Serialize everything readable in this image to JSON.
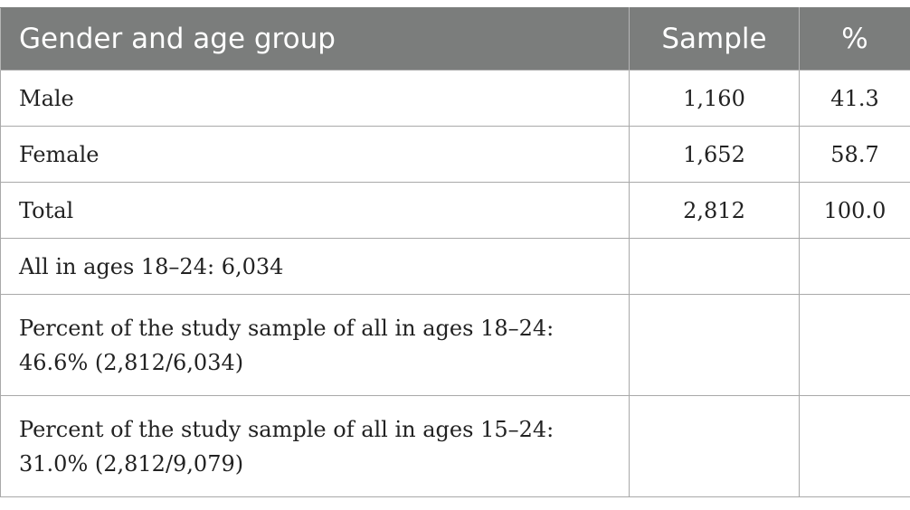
{
  "table": {
    "headers": [
      "Gender and age group",
      "Sample",
      "%"
    ],
    "rows": [
      {
        "label": "Male",
        "sample": "1,160",
        "percent": "41.3"
      },
      {
        "label": "Female",
        "sample": "1,652",
        "percent": "58.7"
      },
      {
        "label": "Total",
        "sample": "2,812",
        "percent": "100.0"
      },
      {
        "label": "All in ages 18–24: 6,034",
        "sample": "",
        "percent": ""
      },
      {
        "label": "Percent of the study sample of all in ages 18–24: 46.6% (2,812/6,034)",
        "sample": "",
        "percent": ""
      },
      {
        "label": "Percent of the study sample of all in ages 15–24: 31.0% (2,812/9,079)",
        "sample": "",
        "percent": ""
      }
    ]
  }
}
